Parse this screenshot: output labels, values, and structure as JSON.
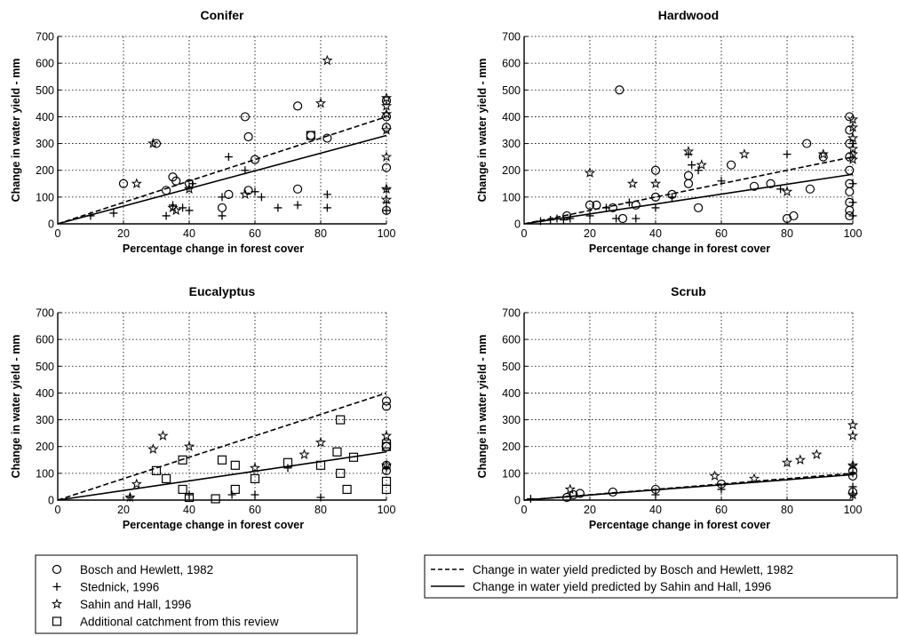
{
  "chart_data": [
    {
      "type": "scatter",
      "title": "Conifer",
      "xlabel": "Percentage change in forest cover",
      "ylabel": "Change in water yield - mm",
      "xlim": [
        0,
        100
      ],
      "ylim": [
        0,
        700
      ],
      "xticks": [
        "0",
        "20",
        "40",
        "60",
        "80",
        "100"
      ],
      "yticks": [
        "0",
        "100",
        "200",
        "300",
        "400",
        "500",
        "600",
        "700"
      ],
      "grid": true,
      "lines": [
        {
          "series": "bosch",
          "x": [
            0,
            100
          ],
          "y": [
            0,
            400
          ]
        },
        {
          "series": "sahin",
          "x": [
            0,
            100
          ],
          "y": [
            0,
            330
          ]
        }
      ],
      "series": [
        {
          "key": "bosch",
          "points": [
            [
              20,
              150
            ],
            [
              30,
              300
            ],
            [
              33,
              125
            ],
            [
              35,
              175
            ],
            [
              36,
              160
            ],
            [
              40,
              150
            ],
            [
              50,
              60
            ],
            [
              52,
              110
            ],
            [
              57,
              400
            ],
            [
              58,
              325
            ],
            [
              58,
              125
            ],
            [
              60,
              240
            ],
            [
              73,
              440
            ],
            [
              73,
              130
            ],
            [
              77,
              330
            ],
            [
              82,
              320
            ],
            [
              100,
              460
            ],
            [
              100,
              400
            ],
            [
              100,
              360
            ],
            [
              100,
              210
            ],
            [
              100,
              50
            ]
          ]
        },
        {
          "key": "stednick",
          "points": [
            [
              10,
              30
            ],
            [
              17,
              40
            ],
            [
              33,
              30
            ],
            [
              35,
              70
            ],
            [
              38,
              60
            ],
            [
              40,
              50
            ],
            [
              41,
              150
            ],
            [
              50,
              30
            ],
            [
              50,
              100
            ],
            [
              52,
              250
            ],
            [
              57,
              200
            ],
            [
              60,
              120
            ],
            [
              62,
              100
            ],
            [
              67,
              60
            ],
            [
              73,
              70
            ],
            [
              82,
              110
            ],
            [
              82,
              60
            ],
            [
              100,
              130
            ],
            [
              100,
              80
            ],
            [
              100,
              50
            ]
          ]
        },
        {
          "key": "sahin",
          "points": [
            [
              24,
              150
            ],
            [
              29,
              300
            ],
            [
              35,
              60
            ],
            [
              36,
              50
            ],
            [
              40,
              130
            ],
            [
              57,
              110
            ],
            [
              80,
              450
            ],
            [
              82,
              610
            ],
            [
              100,
              470
            ],
            [
              100,
              440
            ],
            [
              100,
              410
            ],
            [
              100,
              350
            ],
            [
              100,
              250
            ],
            [
              100,
              130
            ],
            [
              100,
              90
            ]
          ]
        },
        {
          "key": "review",
          "points": [
            [
              77,
              330
            ]
          ]
        }
      ]
    },
    {
      "type": "scatter",
      "title": "Hardwood",
      "xlabel": "Percentage change in forest cover",
      "ylabel": "Change in water yield - mm",
      "xlim": [
        0,
        100
      ],
      "ylim": [
        0,
        700
      ],
      "xticks": [
        "0",
        "20",
        "40",
        "60",
        "80",
        "100"
      ],
      "yticks": [
        "0",
        "100",
        "200",
        "300",
        "400",
        "500",
        "600",
        "700"
      ],
      "grid": true,
      "lines": [
        {
          "series": "bosch",
          "x": [
            0,
            100
          ],
          "y": [
            0,
            250
          ]
        },
        {
          "series": "sahin",
          "x": [
            0,
            100
          ],
          "y": [
            0,
            185
          ]
        }
      ],
      "series": [
        {
          "key": "bosch",
          "points": [
            [
              13,
              30
            ],
            [
              20,
              70
            ],
            [
              22,
              70
            ],
            [
              27,
              60
            ],
            [
              29,
              500
            ],
            [
              30,
              20
            ],
            [
              34,
              70
            ],
            [
              40,
              100
            ],
            [
              40,
              200
            ],
            [
              45,
              110
            ],
            [
              50,
              180
            ],
            [
              50,
              150
            ],
            [
              53,
              60
            ],
            [
              63,
              220
            ],
            [
              70,
              140
            ],
            [
              75,
              150
            ],
            [
              80,
              20
            ],
            [
              82,
              30
            ],
            [
              86,
              300
            ],
            [
              87,
              130
            ],
            [
              91,
              250
            ],
            [
              99,
              400
            ],
            [
              99,
              350
            ],
            [
              99,
              300
            ],
            [
              99,
              250
            ],
            [
              99,
              200
            ],
            [
              99,
              150
            ],
            [
              99,
              120
            ],
            [
              99,
              80
            ],
            [
              99,
              50
            ],
            [
              99,
              30
            ]
          ]
        },
        {
          "key": "stednick",
          "points": [
            [
              5,
              10
            ],
            [
              8,
              15
            ],
            [
              10,
              20
            ],
            [
              12,
              15
            ],
            [
              14,
              20
            ],
            [
              20,
              30
            ],
            [
              25,
              60
            ],
            [
              28,
              20
            ],
            [
              32,
              80
            ],
            [
              34,
              20
            ],
            [
              40,
              60
            ],
            [
              45,
              100
            ],
            [
              50,
              260
            ],
            [
              51,
              220
            ],
            [
              53,
              200
            ],
            [
              60,
              160
            ],
            [
              78,
              130
            ],
            [
              80,
              260
            ],
            [
              100,
              300
            ],
            [
              100,
              150
            ],
            [
              100,
              80
            ],
            [
              100,
              30
            ]
          ]
        },
        {
          "key": "sahin",
          "points": [
            [
              20,
              190
            ],
            [
              33,
              150
            ],
            [
              40,
              150
            ],
            [
              50,
              270
            ],
            [
              54,
              220
            ],
            [
              67,
              260
            ],
            [
              80,
              120
            ],
            [
              91,
              260
            ],
            [
              100,
              390
            ],
            [
              100,
              360
            ],
            [
              100,
              320
            ],
            [
              100,
              280
            ],
            [
              100,
              260
            ],
            [
              100,
              240
            ]
          ]
        },
        {
          "key": "review",
          "points": []
        }
      ]
    },
    {
      "type": "scatter",
      "title": "Eucalyptus",
      "xlabel": "Percentage change in forest cover",
      "ylabel": "Change in water yield - mm",
      "xlim": [
        0,
        100
      ],
      "ylim": [
        0,
        700
      ],
      "xticks": [
        "0",
        "20",
        "40",
        "60",
        "80",
        "100"
      ],
      "yticks": [
        "0",
        "100",
        "200",
        "300",
        "400",
        "500",
        "600",
        "700"
      ],
      "grid": true,
      "lines": [
        {
          "series": "bosch",
          "x": [
            0,
            100
          ],
          "y": [
            0,
            400
          ]
        },
        {
          "series": "sahin",
          "x": [
            0,
            100
          ],
          "y": [
            0,
            180
          ]
        }
      ],
      "series": [
        {
          "key": "bosch",
          "points": [
            [
              100,
              370
            ],
            [
              100,
              350
            ],
            [
              100,
              200
            ],
            [
              100,
              130
            ],
            [
              100,
              110
            ]
          ]
        },
        {
          "key": "stednick",
          "points": [
            [
              22,
              10
            ],
            [
              40,
              20
            ],
            [
              53,
              20
            ],
            [
              60,
              20
            ],
            [
              70,
              120
            ],
            [
              80,
              10
            ],
            [
              100,
              120
            ]
          ]
        },
        {
          "key": "sahin",
          "points": [
            [
              22,
              10
            ],
            [
              24,
              60
            ],
            [
              29,
              190
            ],
            [
              32,
              240
            ],
            [
              40,
              200
            ],
            [
              60,
              120
            ],
            [
              75,
              170
            ],
            [
              80,
              215
            ],
            [
              100,
              240
            ],
            [
              100,
              130
            ]
          ]
        },
        {
          "key": "review",
          "points": [
            [
              30,
              110
            ],
            [
              33,
              80
            ],
            [
              38,
              150
            ],
            [
              38,
              40
            ],
            [
              40,
              10
            ],
            [
              48,
              5
            ],
            [
              50,
              150
            ],
            [
              54,
              130
            ],
            [
              54,
              40
            ],
            [
              60,
              80
            ],
            [
              70,
              140
            ],
            [
              80,
              130
            ],
            [
              85,
              180
            ],
            [
              86,
              300
            ],
            [
              86,
              100
            ],
            [
              88,
              40
            ],
            [
              90,
              160
            ],
            [
              100,
              210
            ],
            [
              100,
              200
            ],
            [
              100,
              70
            ],
            [
              100,
              40
            ]
          ]
        }
      ]
    },
    {
      "type": "scatter",
      "title": "Scrub",
      "xlabel": "Percentage change in forest cover",
      "ylabel": "Change in water yield - mm",
      "xlim": [
        0,
        100
      ],
      "ylim": [
        0,
        700
      ],
      "xticks": [
        "0",
        "20",
        "40",
        "60",
        "80",
        "100"
      ],
      "yticks": [
        "0",
        "100",
        "200",
        "300",
        "400",
        "500",
        "600",
        "700"
      ],
      "grid": true,
      "lines": [
        {
          "series": "bosch",
          "x": [
            0,
            100
          ],
          "y": [
            0,
            100
          ]
        },
        {
          "series": "sahin",
          "x": [
            0,
            100
          ],
          "y": [
            0,
            95
          ]
        }
      ],
      "series": [
        {
          "key": "bosch",
          "points": [
            [
              13,
              10
            ],
            [
              15,
              20
            ],
            [
              17,
              25
            ],
            [
              27,
              30
            ],
            [
              40,
              40
            ],
            [
              60,
              60
            ],
            [
              100,
              110
            ],
            [
              100,
              90
            ],
            [
              100,
              30
            ]
          ]
        },
        {
          "key": "stednick",
          "points": [
            [
              2,
              5
            ],
            [
              14,
              15
            ],
            [
              40,
              20
            ],
            [
              60,
              40
            ],
            [
              100,
              130
            ],
            [
              100,
              100
            ],
            [
              100,
              50
            ],
            [
              100,
              20
            ]
          ]
        },
        {
          "key": "sahin",
          "points": [
            [
              14,
              40
            ],
            [
              58,
              90
            ],
            [
              70,
              80
            ],
            [
              80,
              140
            ],
            [
              84,
              150
            ],
            [
              89,
              170
            ],
            [
              100,
              280
            ],
            [
              100,
              240
            ],
            [
              100,
              130
            ],
            [
              100,
              20
            ]
          ]
        },
        {
          "key": "review",
          "points": []
        }
      ]
    }
  ],
  "legend_markers": {
    "entries": [
      {
        "key": "bosch",
        "label": "Bosch and Hewlett, 1982"
      },
      {
        "key": "stednick",
        "label": "Stednick, 1996"
      },
      {
        "key": "sahin",
        "label": "Sahin and Hall, 1996"
      },
      {
        "key": "review",
        "label": "Additional catchment from this review"
      }
    ]
  },
  "legend_lines": {
    "entries": [
      {
        "key": "bosch",
        "style": "dashed",
        "label": "Change in water yield predicted by Bosch and Hewlett, 1982"
      },
      {
        "key": "sahin",
        "style": "solid",
        "label": "Change in water yield predicted by Sahin and Hall, 1996"
      }
    ]
  }
}
